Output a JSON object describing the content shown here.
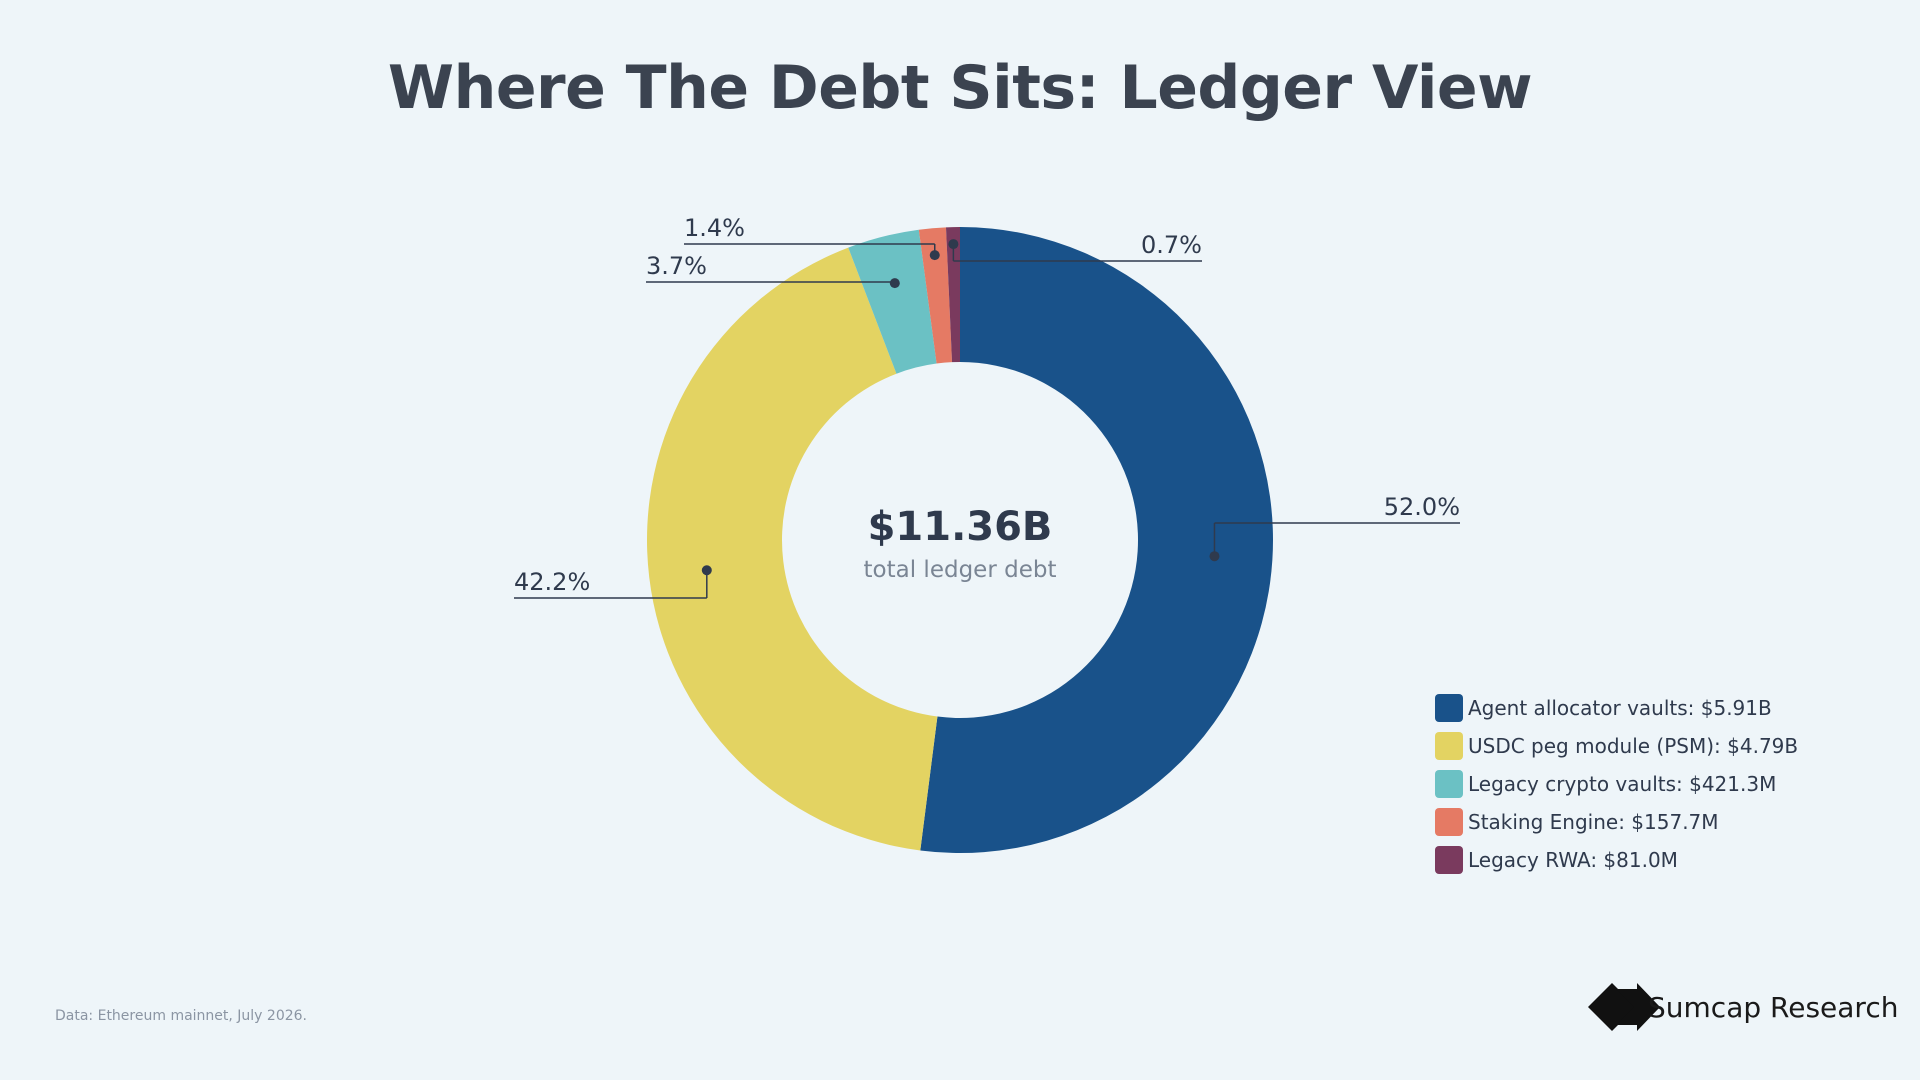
{
  "chart_data": {
    "type": "pie",
    "title": "Where The Debt Sits: Ledger View",
    "center": {
      "value": "$11.36B",
      "label": "total ledger debt"
    },
    "slices": [
      {
        "legend": "Agent allocator vaults: $5.91B",
        "value": 5.91,
        "percent_label": "52.0%",
        "color": "#19528a"
      },
      {
        "legend": "USDC peg module (PSM): $4.79B",
        "value": 4.79,
        "percent_label": "42.2%",
        "color": "#e3d362"
      },
      {
        "legend": "Legacy crypto vaults: $421.3M",
        "value": 0.4213,
        "percent_label": "3.7%",
        "color": "#6bc1c4"
      },
      {
        "legend": "Staking Engine: $157.7M",
        "value": 0.1577,
        "percent_label": "1.4%",
        "color": "#e57a64"
      },
      {
        "legend": "Legacy RWA: $81.0M",
        "value": 0.081,
        "percent_label": "0.7%",
        "color": "#7a3a5e"
      }
    ],
    "legend_position": "bottom-right"
  },
  "footer": {
    "source": "Data: Ethereum mainnet, July 2026.",
    "brand": "Sumcap Research"
  },
  "colors": {
    "background": "#eef5f9",
    "text": "#3b4350"
  }
}
